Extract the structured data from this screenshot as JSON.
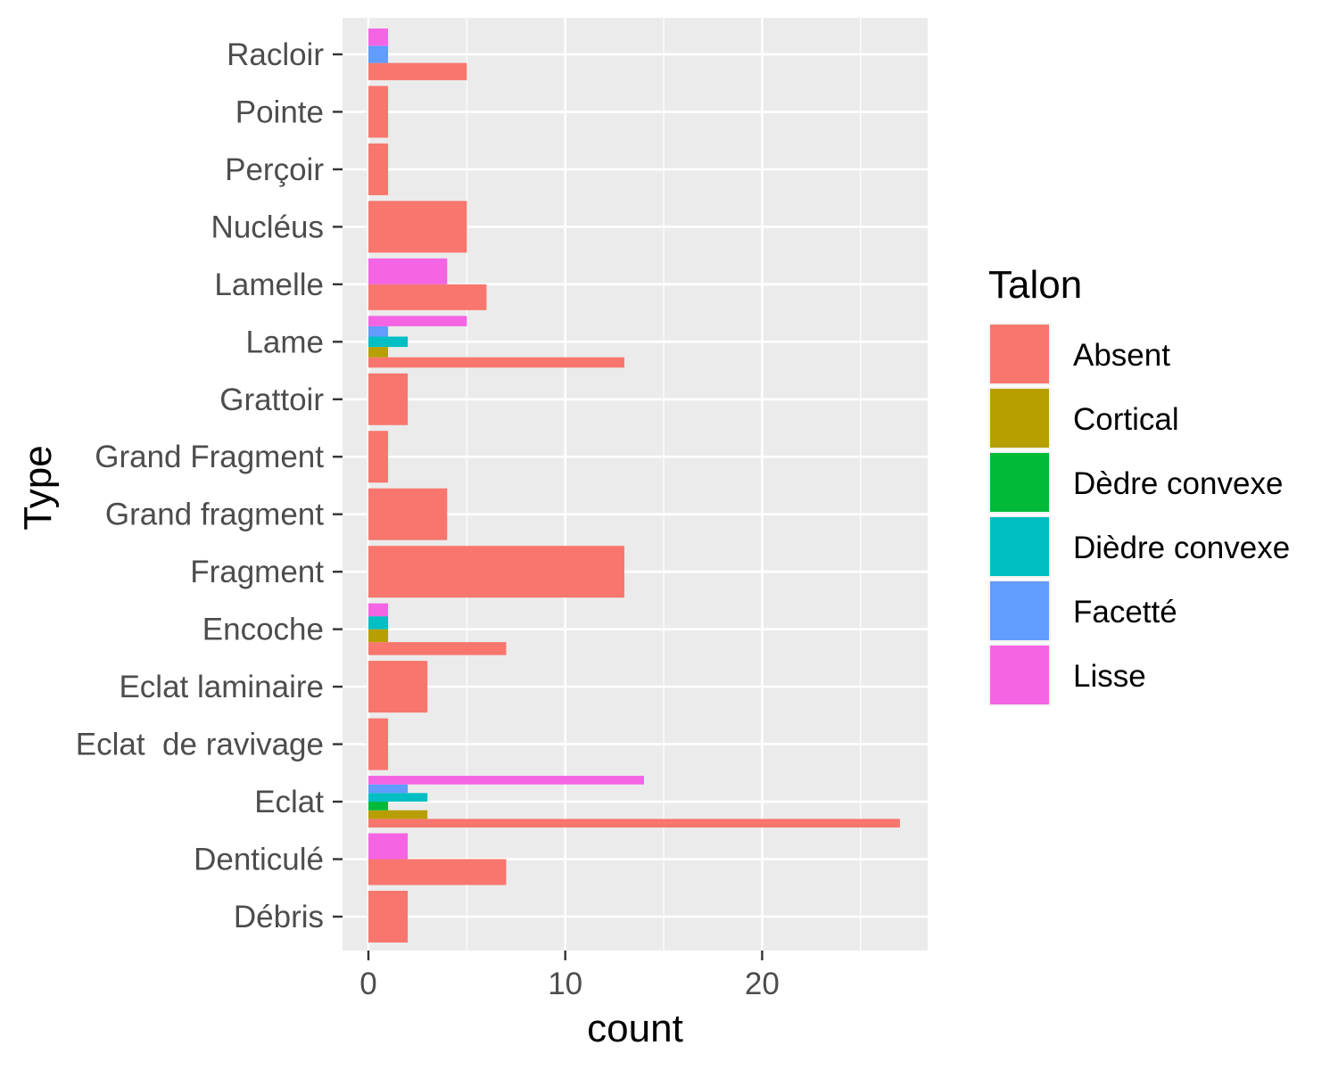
{
  "chart_data": {
    "type": "bar",
    "orientation": "horizontal",
    "position": "dodge",
    "xlabel": "count",
    "ylabel": "Type",
    "xlim": [
      0,
      27
    ],
    "x_ticks": [
      0,
      10,
      20
    ],
    "categories": [
      "Débris",
      "Denticulé",
      "Eclat",
      "Eclat  de ravivage",
      "Eclat laminaire",
      "Encoche",
      "Fragment",
      "Grand fragment",
      "Grand Fragment",
      "Grattoir",
      "Lame",
      "Lamelle",
      "Nucléus",
      "Perçoir",
      "Pointe",
      "Racloir"
    ],
    "series": [
      {
        "name": "Absent",
        "color": "#F8766D",
        "values": [
          2,
          7,
          27,
          1,
          3,
          7,
          13,
          4,
          1,
          2,
          13,
          6,
          5,
          1,
          1,
          5
        ]
      },
      {
        "name": "Cortical",
        "color": "#B79F00",
        "values": [
          0,
          0,
          3,
          0,
          0,
          1,
          0,
          0,
          0,
          0,
          1,
          0,
          0,
          0,
          0,
          0
        ]
      },
      {
        "name": "Dèdre convexe",
        "color": "#00BA38",
        "values": [
          0,
          0,
          1,
          0,
          0,
          0,
          0,
          0,
          0,
          0,
          0,
          0,
          0,
          0,
          0,
          0
        ]
      },
      {
        "name": "Dièdre convexe",
        "color": "#00BFC4",
        "values": [
          0,
          0,
          3,
          0,
          0,
          1,
          0,
          0,
          0,
          0,
          2,
          0,
          0,
          0,
          0,
          0
        ]
      },
      {
        "name": "Facetté",
        "color": "#619CFF",
        "values": [
          0,
          0,
          2,
          0,
          0,
          0,
          0,
          0,
          0,
          0,
          1,
          0,
          0,
          0,
          0,
          1
        ]
      },
      {
        "name": "Lisse",
        "color": "#F564E3",
        "values": [
          0,
          2,
          14,
          0,
          0,
          1,
          0,
          0,
          0,
          0,
          5,
          4,
          0,
          0,
          0,
          1
        ]
      }
    ],
    "legend": {
      "title": "Talon",
      "position": "right"
    },
    "grid": true
  }
}
